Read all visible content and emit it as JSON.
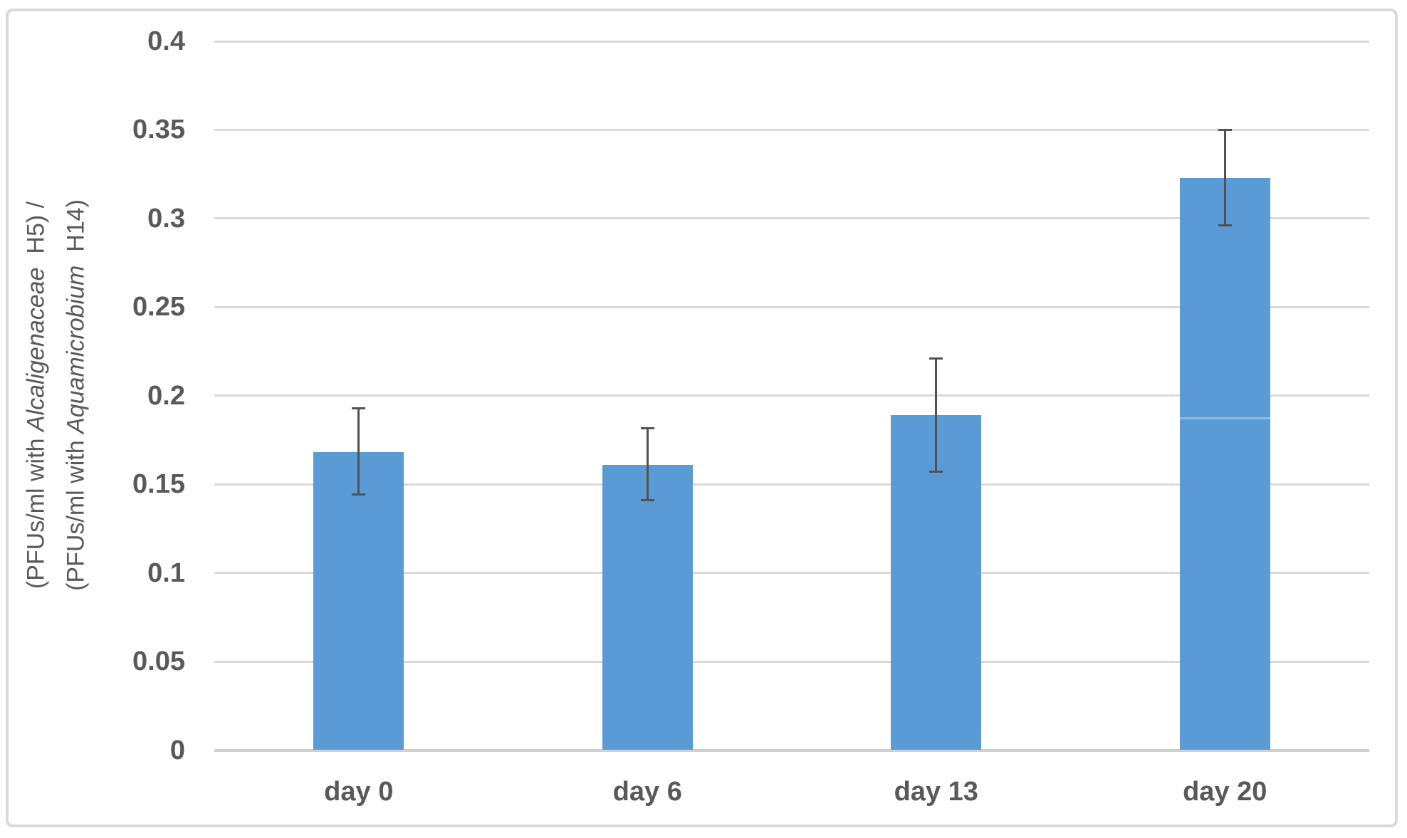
{
  "figure": {
    "background_color": "#ffffff",
    "border_color": "#d9d9d9"
  },
  "chart_data": {
    "type": "bar",
    "title": "",
    "xlabel": "",
    "ylabel_lines": [
      [
        {
          "t": "(PFUs/ml with ",
          "i": false
        },
        {
          "t": "Alcaligenaceae",
          "i": true
        },
        {
          "t": "  H5) /",
          "i": false
        }
      ],
      [
        {
          "t": "(PFUs/ml with ",
          "i": false
        },
        {
          "t": "Aquamicrobium",
          "i": true
        },
        {
          "t": "  H14)",
          "i": false
        }
      ]
    ],
    "categories": [
      "day 0",
      "day 6",
      "day 13",
      "day 20"
    ],
    "values": [
      0.168,
      0.161,
      0.189,
      0.323
    ],
    "error_plus": [
      0.025,
      0.021,
      0.032,
      0.027
    ],
    "error_minus": [
      0.024,
      0.02,
      0.032,
      0.027
    ],
    "yticks": [
      0,
      0.05,
      0.1,
      0.15,
      0.2,
      0.25,
      0.3,
      0.35,
      0.4
    ],
    "ytick_labels": [
      "0",
      "0.05",
      "0.1",
      "0.15",
      "0.2",
      "0.25",
      "0.3",
      "0.35",
      "0.4"
    ],
    "ylim": [
      0,
      0.4
    ],
    "grid": true,
    "legend": "none",
    "bar_color": "#5b9bd5",
    "error_bar_color": "#525252",
    "gridline_color": "#d9d9d9",
    "axis_line_color": "#cfcfcf",
    "text_color": "#595959",
    "artifact_seam": {
      "bar_index": 3,
      "value": 0.188,
      "color": "rgba(255,255,255,0.3)"
    }
  }
}
